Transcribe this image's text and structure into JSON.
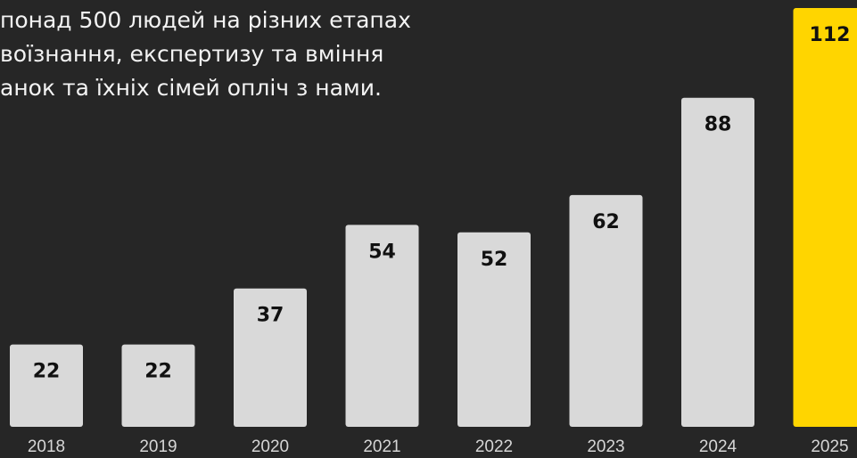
{
  "intro_lines": [
    "понад 500 людей на різних етапах",
    "воїзнання, експертизу та вміння",
    "анок та їхніх сімей опліч з нами."
  ],
  "colors": {
    "background": "#262626",
    "bar_default": "#d9d9d9",
    "bar_highlight": "#ffd500",
    "value_label": "#111111",
    "text_light": "#f3f3f3",
    "year_label": "#d6d6d6"
  },
  "chart_data": {
    "type": "bar",
    "categories": [
      "2018",
      "2019",
      "2020",
      "2021",
      "2022",
      "2023",
      "2024",
      "2025"
    ],
    "values": [
      22,
      22,
      37,
      54,
      52,
      62,
      88,
      112
    ],
    "highlight_index": 7,
    "title": "",
    "xlabel": "",
    "ylabel": "",
    "ylim": [
      0,
      112
    ],
    "grid": false,
    "legend": "none"
  }
}
